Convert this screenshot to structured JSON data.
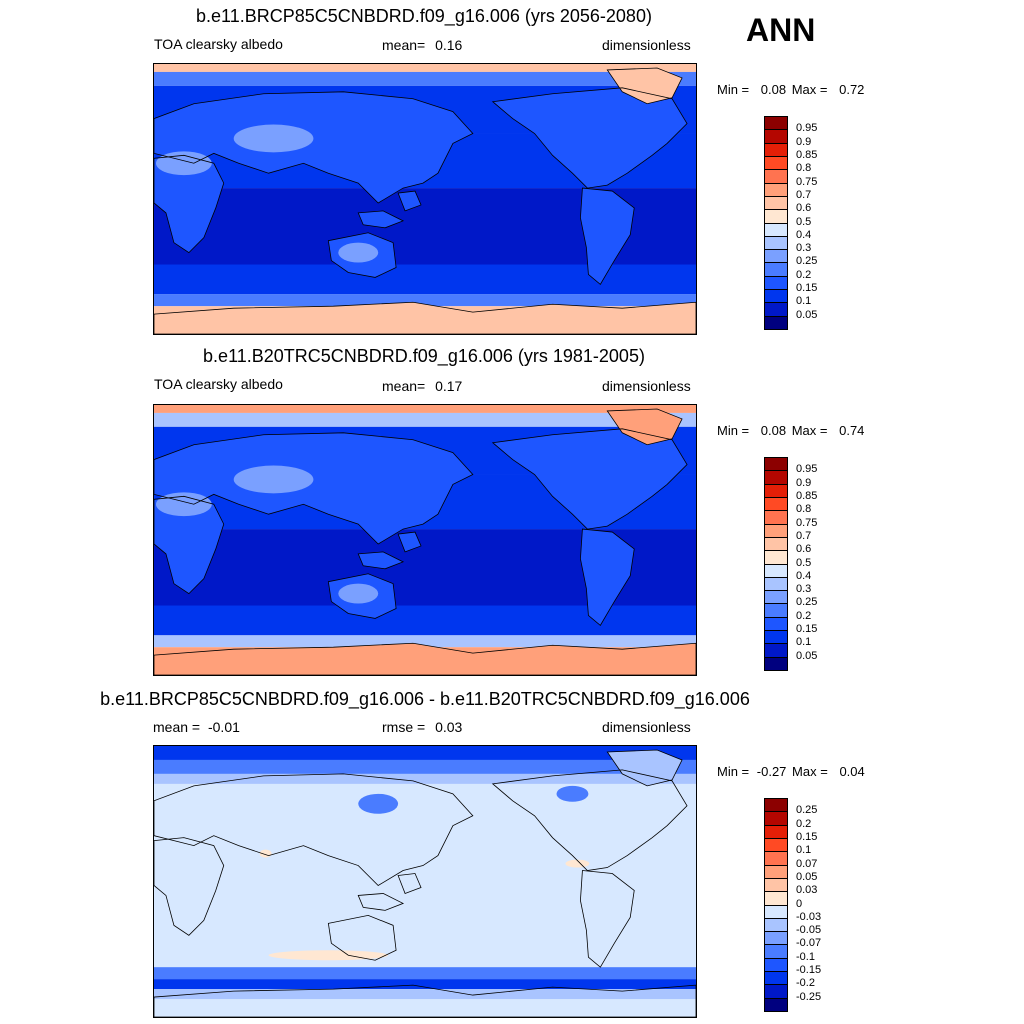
{
  "season": "ANN",
  "chart_data": [
    {
      "type": "heatmap",
      "title": "b.e11.BRCP85C5CNBDRD.f09_g16.006 (yrs 2056-2080)",
      "variable": "TOA clearsky albedo",
      "stat_label": "mean=",
      "stat_value": "0.16",
      "units": "dimensionless",
      "min_label": "Min =",
      "min_value": "0.08",
      "max_label": "Max =",
      "max_value": "0.72",
      "colorbar_levels": [
        "0.05",
        "0.1",
        "0.15",
        "0.2",
        "0.25",
        "0.3",
        "0.4",
        "0.5",
        "0.6",
        "0.7",
        "0.75",
        "0.8",
        "0.85",
        "0.9",
        "0.95"
      ],
      "colorbar_colors": [
        "#00007f",
        "#0018c8",
        "#0036ee",
        "#1e56ff",
        "#4a7cff",
        "#7aa0ff",
        "#a9c4ff",
        "#d7e8ff",
        "#ffe7d2",
        "#ffc4a6",
        "#ffa07a",
        "#ff7350",
        "#ff4a24",
        "#e41f07",
        "#b40600",
        "#8c0000"
      ],
      "projection": "cylindrical-equidistant, Pacific-centred",
      "field_colors": {
        "ocean_tropical": "#0018c8",
        "ocean_mid": "#0036ee",
        "land": "#1e56ff",
        "desert": "#7aa0ff",
        "high_lat": "#4a7cff",
        "ice": "#ffc4a6"
      }
    },
    {
      "type": "heatmap",
      "title": "b.e11.B20TRC5CNBDRD.f09_g16.006 (yrs 1981-2005)",
      "variable": "TOA clearsky albedo",
      "stat_label": "mean=",
      "stat_value": "0.17",
      "units": "dimensionless",
      "min_label": "Min =",
      "min_value": "0.08",
      "max_label": "Max =",
      "max_value": "0.74",
      "colorbar_levels": [
        "0.05",
        "0.1",
        "0.15",
        "0.2",
        "0.25",
        "0.3",
        "0.4",
        "0.5",
        "0.6",
        "0.7",
        "0.75",
        "0.8",
        "0.85",
        "0.9",
        "0.95"
      ],
      "colorbar_colors": [
        "#00007f",
        "#0018c8",
        "#0036ee",
        "#1e56ff",
        "#4a7cff",
        "#7aa0ff",
        "#a9c4ff",
        "#d7e8ff",
        "#ffe7d2",
        "#ffc4a6",
        "#ffa07a",
        "#ff7350",
        "#ff4a24",
        "#e41f07",
        "#b40600",
        "#8c0000"
      ],
      "projection": "cylindrical-equidistant, Pacific-centred",
      "field_colors": {
        "ocean_tropical": "#0018c8",
        "ocean_mid": "#0036ee",
        "land": "#1e56ff",
        "desert": "#7aa0ff",
        "high_lat": "#a9c4ff",
        "ice": "#ffa07a"
      }
    },
    {
      "type": "heatmap",
      "title": "b.e11.BRCP85C5CNBDRD.f09_g16.006 - b.e11.B20TRC5CNBDRD.f09_g16.006",
      "variable": "",
      "stat_label": "mean =",
      "stat_value": "-0.01",
      "stat2_label": "rmse =",
      "stat2_value": "0.03",
      "units": "dimensionless",
      "min_label": "Min =",
      "min_value": "-0.27",
      "max_label": "Max =",
      "max_value": "0.04",
      "colorbar_levels": [
        "-0.25",
        "-0.2",
        "-0.15",
        "-0.1",
        "-0.07",
        "-0.05",
        "-0.03",
        "0",
        "0.03",
        "0.05",
        "0.07",
        "0.1",
        "0.15",
        "0.2",
        "0.25"
      ],
      "colorbar_colors": [
        "#00007f",
        "#0018c8",
        "#0036ee",
        "#1e56ff",
        "#4a7cff",
        "#7aa0ff",
        "#a9c4ff",
        "#d7e8ff",
        "#ffe7d2",
        "#ffc4a6",
        "#ffa07a",
        "#ff7350",
        "#ff4a24",
        "#e41f07",
        "#b40600",
        "#8c0000"
      ],
      "projection": "cylindrical-equidistant, Pacific-centred",
      "field_colors": {
        "background": "#d7e8ff",
        "neg_small": "#a9c4ff",
        "neg_mid": "#4a7cff",
        "neg_large": "#0036ee",
        "pos_small": "#ffe7d2"
      }
    }
  ]
}
